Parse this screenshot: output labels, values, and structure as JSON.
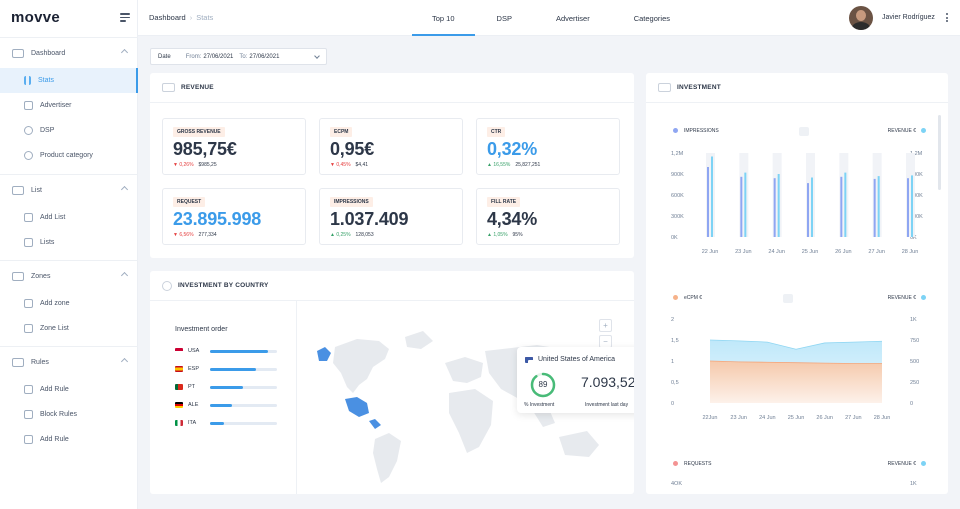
{
  "app": {
    "logo": "movve"
  },
  "sidebar": {
    "groups": [
      {
        "label": "Dashboard",
        "items": [
          {
            "label": "Stats",
            "active": true
          },
          {
            "label": "Advertiser"
          },
          {
            "label": "DSP"
          },
          {
            "label": "Product category"
          }
        ]
      },
      {
        "label": "List",
        "items": [
          {
            "label": "Add List"
          },
          {
            "label": "Lists"
          }
        ]
      },
      {
        "label": "Zones",
        "items": [
          {
            "label": "Add zone"
          },
          {
            "label": "Zone List"
          }
        ]
      },
      {
        "label": "Rules",
        "items": [
          {
            "label": "Add Rule"
          },
          {
            "label": "Block Rules"
          },
          {
            "label": "Add Rule"
          }
        ]
      }
    ]
  },
  "topbar": {
    "breadcrumb": {
      "root": "Dashboard",
      "separator": "›",
      "current": "Stats"
    },
    "tabs": [
      "Top 10",
      "DSP",
      "Advertiser",
      "Categories"
    ],
    "active_tab": "Top 10",
    "user": {
      "name": "Javier Rodríguez"
    }
  },
  "filter": {
    "label": "Date",
    "from_label": "From:",
    "from": "27/06/2021",
    "to_label": "To:",
    "to": "27/06/2021"
  },
  "revenue": {
    "title": "REVENUE",
    "kpis": [
      {
        "tag": "GROSS REVENUE",
        "value": "985,75€",
        "trend": "down",
        "change": "0,26%",
        "prev": "$985,25",
        "highlight": false
      },
      {
        "tag": "ECPM",
        "value": "0,95€",
        "trend": "down",
        "change": "0,45%",
        "prev": "$4,41",
        "highlight": false
      },
      {
        "tag": "CTR",
        "value": "0,32%",
        "trend": "up",
        "change": "16,55%",
        "prev": "25,827,251",
        "highlight": true
      },
      {
        "tag": "REQUEST",
        "value": "23.895.998",
        "trend": "down",
        "change": "6,56%",
        "prev": "277,334",
        "highlight": true
      },
      {
        "tag": "IMPRESSIONS",
        "value": "1.037.409",
        "trend": "up",
        "change": "0,25%",
        "prev": "128,053",
        "highlight": false
      },
      {
        "tag": "FILL RATE",
        "value": "4,34%",
        "trend": "up",
        "change": "1,05%",
        "prev": "95%",
        "highlight": false
      }
    ]
  },
  "by_country": {
    "title": "INVESTMENT BY COUNTRY",
    "order_title": "Investment order",
    "countries": [
      {
        "code": "USA",
        "value": 0.86,
        "flag": "us"
      },
      {
        "code": "ESP",
        "value": 0.68,
        "flag": "es"
      },
      {
        "code": "PT",
        "value": 0.49,
        "flag": "pt"
      },
      {
        "code": "ALE",
        "value": 0.33,
        "flag": "de"
      },
      {
        "code": "ITA",
        "value": 0.21,
        "flag": "it"
      }
    ],
    "zoom_in": "+",
    "zoom_out": "−",
    "tooltip": {
      "country": "United States of America",
      "percent": 89,
      "percent_label": "% Investment",
      "amount": "7.093,52€",
      "amount_label": "Investment last day"
    }
  },
  "investment": {
    "title": "INVESTMENT",
    "chart_data": [
      {
        "type": "bar",
        "series": [
          {
            "name": "IMPRESSIONS",
            "values": [
              1000000,
              860000,
              840000,
              770000,
              860000,
              830000,
              840000
            ]
          },
          {
            "name": "REVENUE €",
            "values": [
              1150000,
              920000,
              900000,
              850000,
              920000,
              870000,
              880000
            ]
          }
        ],
        "categories": [
          "22 Jun",
          "23 Jun",
          "24 Jun",
          "25 Jun",
          "26 Jun",
          "27 Jun",
          "28 Jun"
        ],
        "y_ticks": [
          "1,2M",
          "900K",
          "600K",
          "300K",
          "0K"
        ],
        "y2_ticks": [
          "1,2M",
          "900K",
          "600K",
          "300K",
          "0K"
        ],
        "ylim": [
          0,
          1200000
        ]
      },
      {
        "type": "area",
        "series": [
          {
            "name": "eCPM €",
            "values": [
              1.5,
              1.48,
              1.45,
              1.28,
              1.43,
              1.45,
              1.47
            ]
          },
          {
            "name": "REVENUE €",
            "values": [
              1.0,
              0.98,
              0.97,
              0.96,
              0.95,
              0.94,
              0.94
            ]
          }
        ],
        "categories": [
          "22Jun",
          "23 Jun",
          "24 Jun",
          "25 Jun",
          "26 Jun",
          "27 Jun",
          "28 Jun"
        ],
        "y_ticks": [
          "2",
          "1,5",
          "1",
          "0,5",
          "0"
        ],
        "y2_ticks": [
          "1K",
          "750",
          "500",
          "250",
          "0"
        ],
        "ylim": [
          0,
          2
        ]
      },
      {
        "type": "bar",
        "series": [
          {
            "name": "REQUESTS",
            "values": []
          },
          {
            "name": "REVENUE €",
            "values": []
          }
        ],
        "y_ticks": [
          "4OK"
        ],
        "y2_ticks": [
          "1K"
        ]
      }
    ],
    "colors": {
      "impressions": "#8fa6f2",
      "revenue": "#7dd3f5",
      "ecpm": "#f6b28a",
      "requests": "#f49393"
    }
  }
}
